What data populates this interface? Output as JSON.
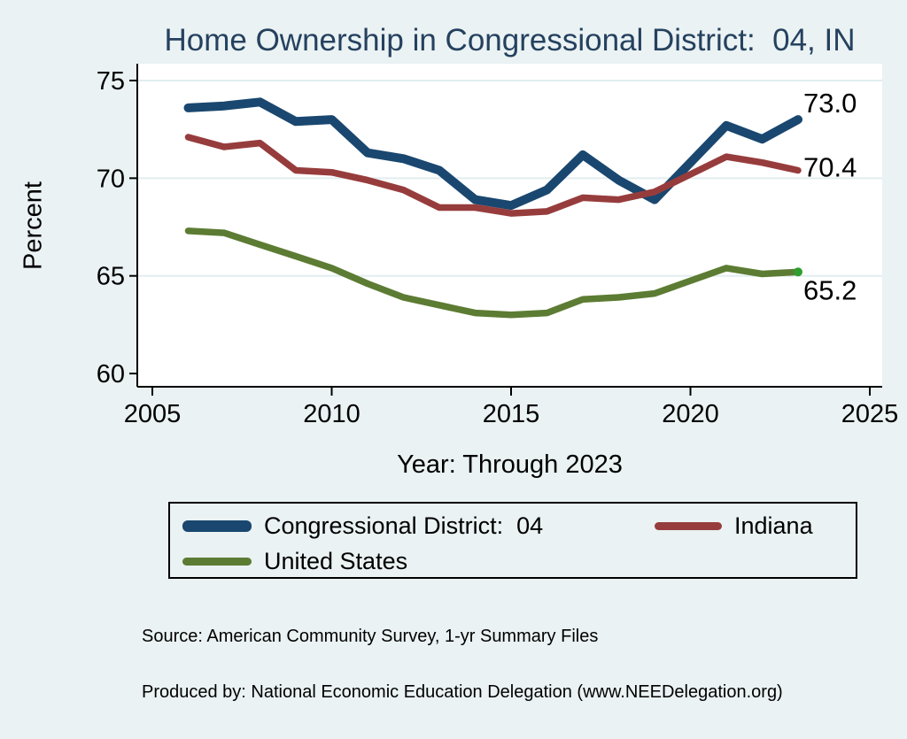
{
  "title": "Home Ownership in Congressional District:  04, IN",
  "ylabel": "Percent",
  "xlabel": "Year: Through 2023",
  "footer": {
    "source": "Source: American Community Survey, 1-yr Summary Files",
    "produced_by": "Produced by: National Economic Education Delegation (www.NEEDelegation.org)"
  },
  "colors": {
    "background": "#eaf2f3",
    "plot_background": "#ffffff",
    "gridline": "#e2edf0",
    "axis": "#000000",
    "title": "#25415f",
    "district": "#1a476f",
    "indiana": "#973c3c",
    "united_states": "#5c7c33",
    "end_marker": "#2f9e2f"
  },
  "legend": {
    "items": [
      {
        "label": "Congressional District:  04",
        "color": "#1a476f"
      },
      {
        "label": "Indiana",
        "color": "#973c3c"
      },
      {
        "label": "United States",
        "color": "#5c7c33"
      }
    ]
  },
  "chart_data": {
    "type": "line",
    "title": "Home Ownership in Congressional District:  04, IN",
    "xlabel": "Year: Through 2023",
    "ylabel": "Percent",
    "xlim": [
      2005,
      2025
    ],
    "ylim": [
      60,
      75
    ],
    "x_ticks": [
      2005,
      2010,
      2015,
      2020,
      2025
    ],
    "y_ticks": [
      60,
      65,
      70,
      75
    ],
    "grid": true,
    "legend_position": "bottom",
    "note": "No data point for 2020; line connects 2019 to 2021",
    "x": [
      2006,
      2007,
      2008,
      2009,
      2010,
      2011,
      2012,
      2013,
      2014,
      2015,
      2016,
      2017,
      2018,
      2019,
      2021,
      2022,
      2023
    ],
    "series": [
      {
        "name": "Congressional District:  04",
        "color": "#1a476f",
        "line_width": 10,
        "end_label": "73.0",
        "values": [
          73.6,
          73.7,
          73.9,
          72.9,
          73.0,
          71.3,
          71.0,
          70.4,
          68.9,
          68.6,
          69.4,
          71.2,
          69.9,
          68.9,
          72.7,
          72.0,
          73.0
        ]
      },
      {
        "name": "Indiana",
        "color": "#973c3c",
        "line_width": 7.5,
        "end_label": "70.4",
        "values": [
          72.1,
          71.6,
          71.8,
          70.4,
          70.3,
          69.9,
          69.4,
          68.5,
          68.5,
          68.2,
          68.3,
          69.0,
          68.9,
          69.3,
          71.1,
          70.8,
          70.4
        ]
      },
      {
        "name": "United States",
        "color": "#5c7c33",
        "line_width": 7.5,
        "end_label": "65.2",
        "end_marker": true,
        "values": [
          67.3,
          67.2,
          66.6,
          66.0,
          65.4,
          64.6,
          63.9,
          63.5,
          63.1,
          63.0,
          63.1,
          63.8,
          63.9,
          64.1,
          65.4,
          65.1,
          65.2
        ]
      }
    ]
  }
}
